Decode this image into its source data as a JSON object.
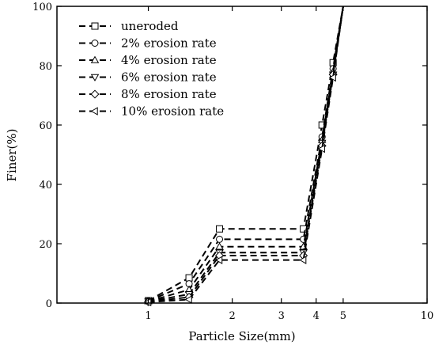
{
  "chart_data": {
    "type": "line",
    "xlabel": "Particle Size(mm)",
    "ylabel": "Finer(%)",
    "xscale": "log",
    "xlim": [
      0.47,
      10
    ],
    "ylim": [
      0,
      100
    ],
    "xticks": [
      1,
      2,
      3,
      4,
      5,
      10
    ],
    "yticks": [
      0,
      20,
      40,
      60,
      80,
      100
    ],
    "grid": false,
    "legend_position": "top-left",
    "series": [
      {
        "name": "uneroded",
        "marker": "square",
        "x": [
          1,
          1.4,
          1.8,
          3.6,
          4.2,
          4.6,
          5
        ],
        "y": [
          0.8,
          8.5,
          25,
          25,
          60,
          81,
          100
        ]
      },
      {
        "name": "2% erosion rate",
        "marker": "circle",
        "x": [
          1,
          1.4,
          1.8,
          3.6,
          4.2,
          4.6,
          5
        ],
        "y": [
          0.7,
          6.5,
          21.5,
          21.5,
          56,
          79,
          100
        ]
      },
      {
        "name": "4% erosion rate",
        "marker": "triangle-up",
        "x": [
          1,
          1.4,
          1.8,
          3.6,
          4.2,
          4.6,
          5
        ],
        "y": [
          0.6,
          4.5,
          19,
          19,
          55,
          78,
          100
        ]
      },
      {
        "name": "6% erosion rate",
        "marker": "triangle-down",
        "x": [
          1,
          1.4,
          1.8,
          3.6,
          4.2,
          4.6,
          5
        ],
        "y": [
          0.5,
          3,
          17,
          17,
          54,
          77,
          100
        ]
      },
      {
        "name": "8% erosion rate",
        "marker": "diamond",
        "x": [
          1,
          1.4,
          1.8,
          3.6,
          4.2,
          4.6,
          5
        ],
        "y": [
          0.4,
          2,
          16,
          16,
          53,
          77,
          100
        ]
      },
      {
        "name": "10% erosion rate",
        "marker": "triangle-left",
        "x": [
          1,
          1.4,
          1.8,
          3.6,
          4.2,
          4.6,
          5
        ],
        "y": [
          0.3,
          1.2,
          14.5,
          14.5,
          52,
          76,
          100
        ]
      }
    ]
  }
}
